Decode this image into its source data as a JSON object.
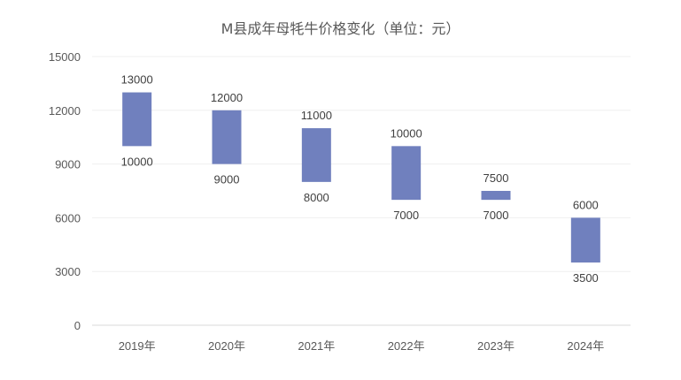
{
  "chart_data": {
    "type": "bar",
    "title": "M县成年母牦牛价格变化（单位：元）",
    "categories": [
      "2019年",
      "2020年",
      "2021年",
      "2022年",
      "2023年",
      "2024年"
    ],
    "series": [
      {
        "low": 10000,
        "high": 13000
      },
      {
        "low": 9000,
        "high": 12000
      },
      {
        "low": 8000,
        "high": 11000
      },
      {
        "low": 7000,
        "high": 10000
      },
      {
        "low": 7000,
        "high": 7500
      },
      {
        "low": 3500,
        "high": 6000
      }
    ],
    "yticks": [
      0,
      3000,
      6000,
      9000,
      12000,
      15000
    ],
    "ylim": [
      0,
      15000
    ],
    "grid": true,
    "bar_color": "#7080BE"
  }
}
